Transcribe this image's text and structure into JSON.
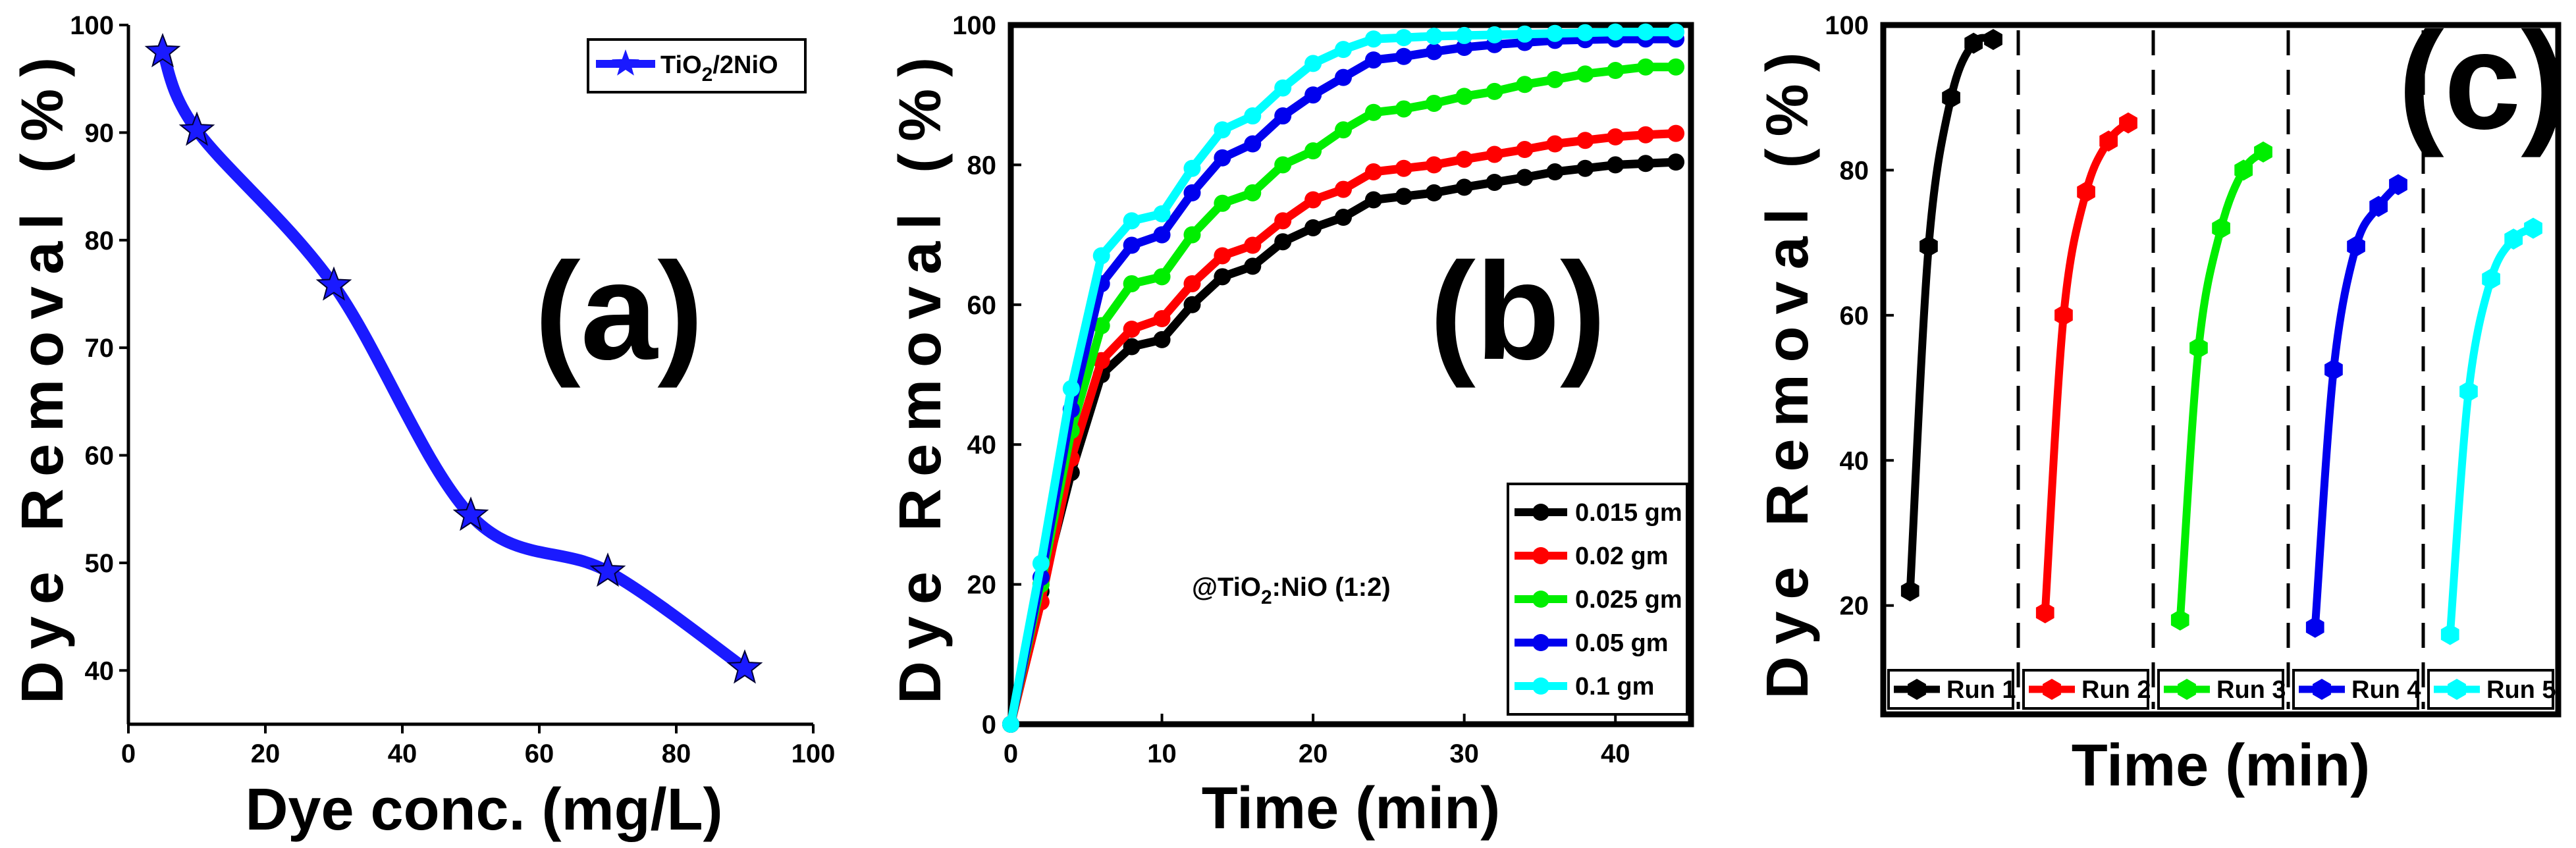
{
  "chart_data": [
    {
      "panel": "a",
      "type": "line",
      "panel_label": "(a)",
      "xlabel": "Dye conc. (mg/L)",
      "ylabel": "Dye Removal (%)",
      "xlim": [
        0,
        100
      ],
      "ylim": [
        35,
        100
      ],
      "xticks": [
        0,
        20,
        40,
        60,
        80,
        100
      ],
      "yticks": [
        40,
        50,
        60,
        70,
        80,
        90,
        100
      ],
      "marker": "star",
      "legend_position": "top-right",
      "series": [
        {
          "name": "TiO2/2NiO",
          "name_base": "TiO",
          "name_sub": "2",
          "name_rest": "/2NiO",
          "color": "#1a1aff",
          "x": [
            5,
            10,
            30,
            50,
            70,
            90
          ],
          "values": [
            97.5,
            90.2,
            75.8,
            54.4,
            49.2,
            40.2
          ]
        }
      ]
    },
    {
      "panel": "b",
      "type": "line",
      "panel_label": "(b)",
      "xlabel": "Time (min)",
      "ylabel": "Dye Removal (%)",
      "xlim": [
        0,
        45
      ],
      "ylim": [
        0,
        100
      ],
      "xticks": [
        0,
        10,
        20,
        30,
        40
      ],
      "yticks": [
        0,
        20,
        40,
        60,
        80,
        100
      ],
      "marker": "circle",
      "legend_position": "bottom-right",
      "annotation": {
        "prefix": "@TiO",
        "sub": "2",
        "suffix": ":NiO (1:2)"
      },
      "x": [
        0,
        2,
        4,
        6,
        8,
        10,
        12,
        14,
        16,
        18,
        20,
        22,
        24,
        26,
        28,
        30,
        32,
        34,
        36,
        38,
        40,
        42,
        44
      ],
      "series": [
        {
          "name": "0.015 gm",
          "color": "#000000",
          "values": [
            0,
            19,
            36,
            50,
            54,
            55,
            60,
            64,
            65.5,
            69,
            71,
            72.5,
            75,
            75.5,
            76,
            76.8,
            77.5,
            78.2,
            79,
            79.5,
            80,
            80.2,
            80.4
          ]
        },
        {
          "name": "0.02 gm",
          "color": "#ff0000",
          "values": [
            0,
            17.5,
            38,
            52,
            56.5,
            58,
            63,
            67,
            68.5,
            72,
            75,
            76.5,
            79,
            79.5,
            80,
            80.8,
            81.5,
            82.2,
            83,
            83.5,
            84,
            84.3,
            84.5
          ]
        },
        {
          "name": "0.025 gm",
          "color": "#00ee00",
          "values": [
            0,
            20,
            42,
            57,
            63,
            64,
            70,
            74.5,
            76,
            80,
            82,
            85,
            87.5,
            88,
            88.8,
            89.8,
            90.5,
            91.5,
            92.2,
            93,
            93.5,
            94,
            94
          ]
        },
        {
          "name": "0.05 gm",
          "color": "#0000ee",
          "values": [
            0,
            21,
            45,
            63,
            68.5,
            70,
            76,
            81,
            83,
            87,
            90,
            92.5,
            95,
            95.5,
            96.2,
            96.8,
            97.2,
            97.5,
            97.8,
            97.9,
            98,
            98,
            98
          ]
        },
        {
          "name": "0.1 gm",
          "color": "#00ffff",
          "values": [
            0,
            23,
            48,
            67,
            72,
            73,
            79.5,
            85,
            87,
            91,
            94.5,
            96.5,
            98,
            98.2,
            98.4,
            98.5,
            98.6,
            98.7,
            98.8,
            98.9,
            99,
            99,
            99
          ]
        }
      ]
    },
    {
      "panel": "c",
      "type": "line",
      "panel_label": "(c)",
      "xlabel": "Time (min)",
      "ylabel": "Dye Removal (%)",
      "ylim": [
        5,
        100
      ],
      "yticks": [
        20,
        40,
        60,
        80,
        100
      ],
      "marker": "hexagon",
      "legend_position": "bottom",
      "series": [
        {
          "name": "Run 1",
          "color": "#000000",
          "values": [
            22,
            69.5,
            90,
            97.5,
            98
          ]
        },
        {
          "name": "Run 2",
          "color": "#ff0000",
          "values": [
            19,
            60,
            77,
            84,
            86.5
          ]
        },
        {
          "name": "Run 3",
          "color": "#00ee00",
          "values": [
            18,
            55.5,
            72,
            80,
            82.5
          ]
        },
        {
          "name": "Run 4",
          "color": "#0000ee",
          "values": [
            17,
            52.5,
            69.5,
            75,
            78
          ]
        },
        {
          "name": "Run 5",
          "color": "#00ffff",
          "values": [
            16,
            49.5,
            65,
            70.5,
            72
          ]
        }
      ]
    }
  ]
}
